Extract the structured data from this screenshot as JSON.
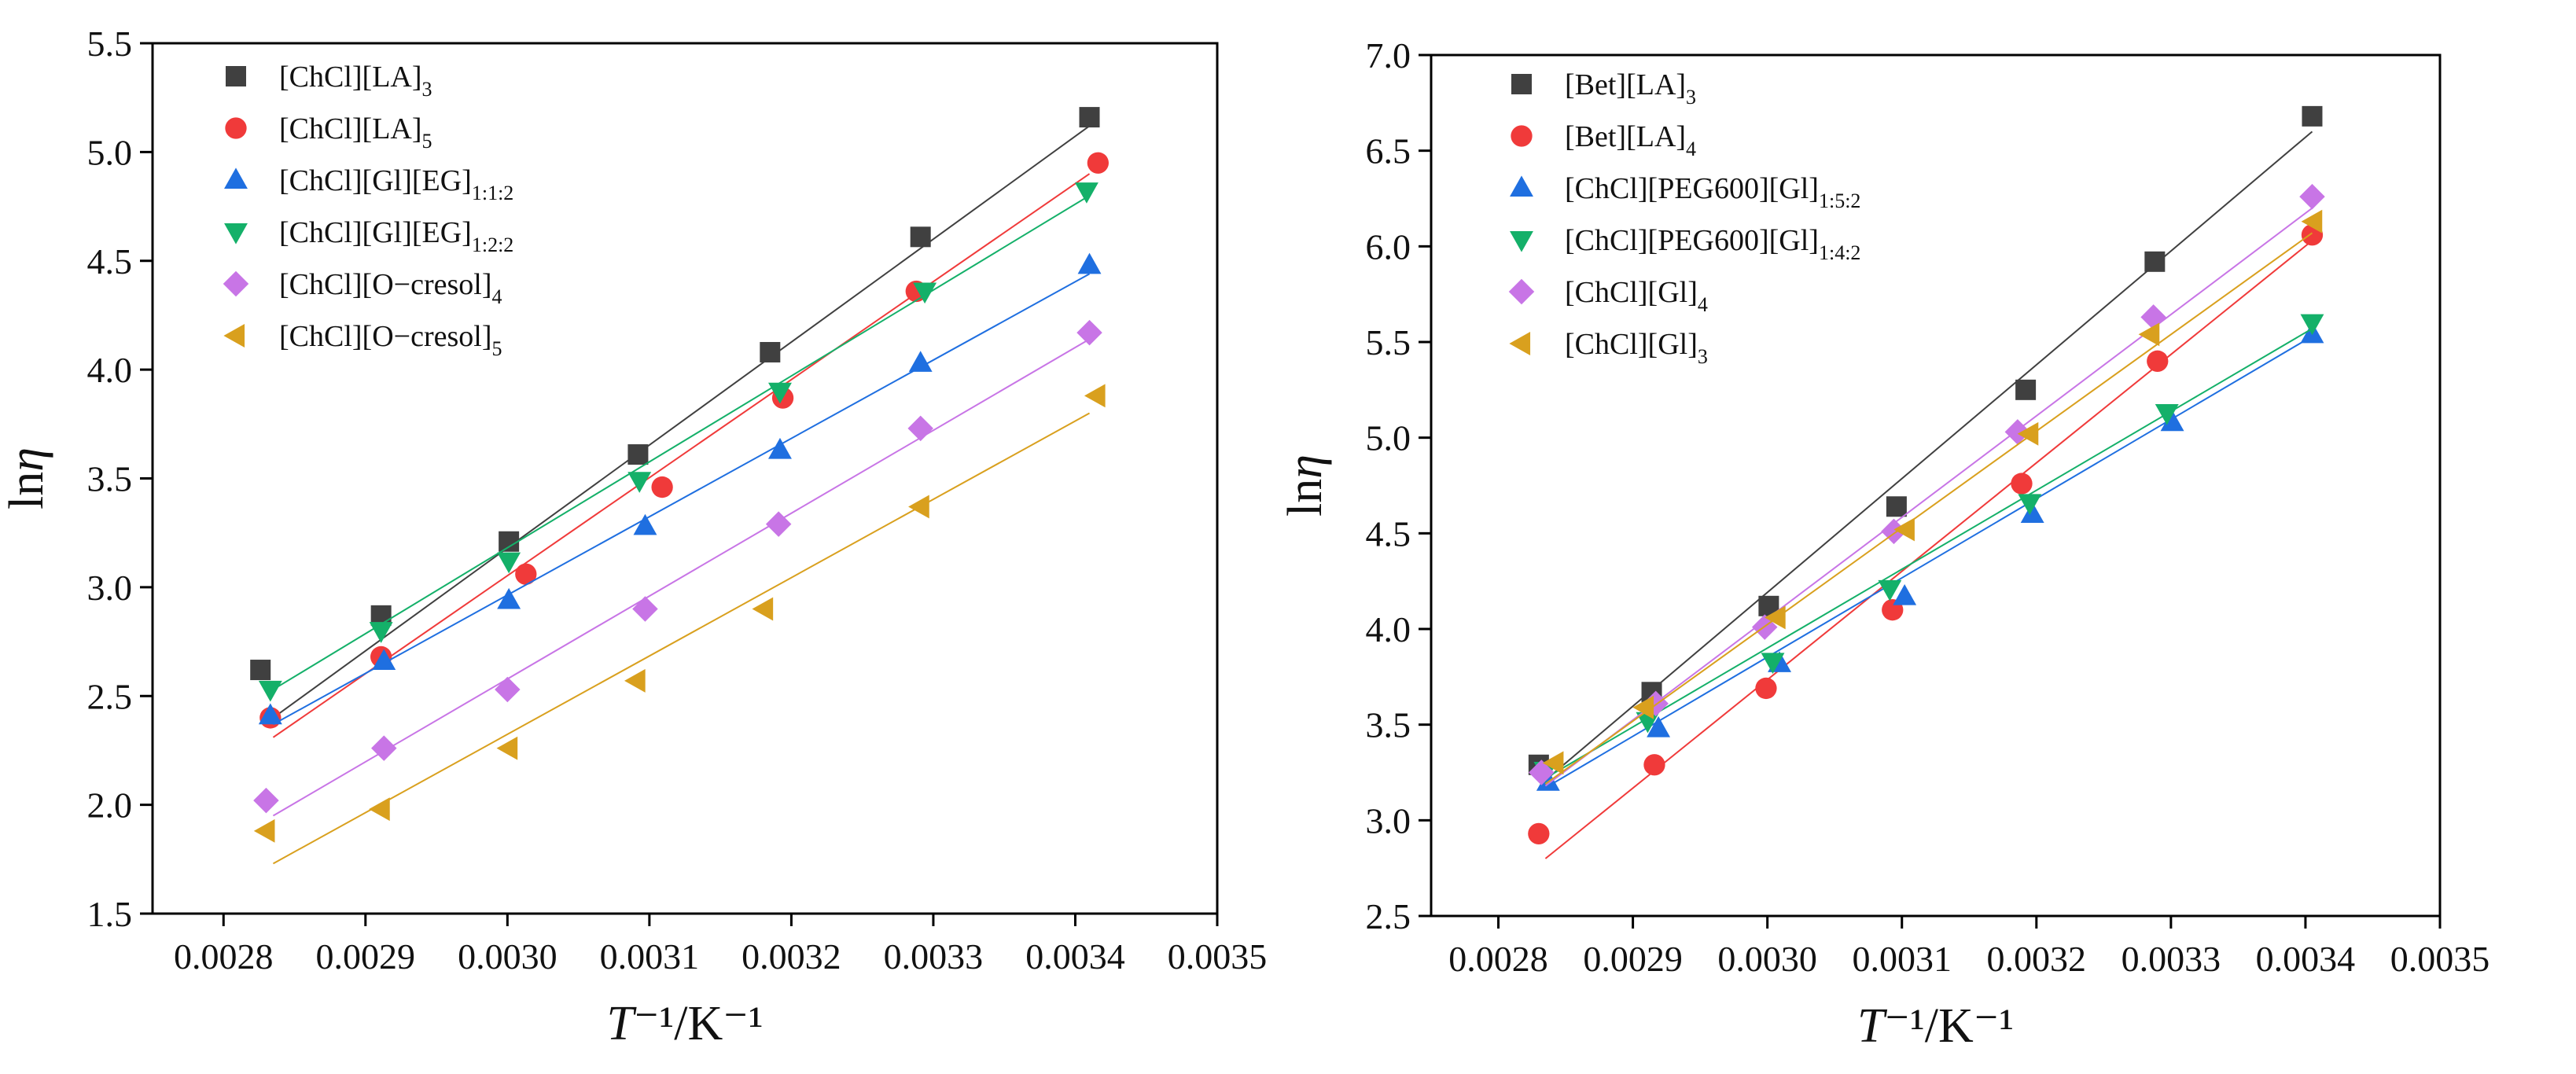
{
  "chart_data": [
    {
      "type": "scatter",
      "xlabel": "T⁻¹/K⁻¹",
      "ylabel": "lnη",
      "xlim": [
        0.00275,
        0.0035
      ],
      "ylim": [
        1.5,
        5.5
      ],
      "xticks": [
        "0.0028",
        "0.0029",
        "0.0030",
        "0.0031",
        "0.0032",
        "0.0033",
        "0.0034",
        "0.0035"
      ],
      "yticks": [
        "1.5",
        "2.0",
        "2.5",
        "3.0",
        "3.5",
        "4.0",
        "4.5",
        "5.0",
        "5.5"
      ],
      "legend_position": "top-left",
      "series": [
        {
          "name": "[ChCl][LA]",
          "sub": "3",
          "marker": "square",
          "color": "#404040",
          "x": [
            0.002826,
            0.002911,
            0.003001,
            0.003092,
            0.003185,
            0.003291,
            0.00341
          ],
          "y": [
            2.62,
            2.87,
            3.21,
            3.61,
            4.08,
            4.61,
            5.16
          ],
          "fit": [
            [
              0.002835,
              2.4
            ],
            [
              0.00341,
              5.12
            ]
          ]
        },
        {
          "name": "[ChCl][LA]",
          "sub": "5",
          "marker": "circle",
          "color": "#f03a3a",
          "x": [
            0.002833,
            0.002911,
            0.003013,
            0.003109,
            0.003194,
            0.003288,
            0.003416
          ],
          "y": [
            2.4,
            2.68,
            3.06,
            3.46,
            3.87,
            4.36,
            4.95
          ],
          "fit": [
            [
              0.002835,
              2.31
            ],
            [
              0.00341,
              4.9
            ]
          ]
        },
        {
          "name": "[ChCl][Gl][EG]",
          "sub": "1:1:2",
          "marker": "triangle-up",
          "color": "#1f6fe0",
          "x": [
            0.002833,
            0.002913,
            0.003001,
            0.003097,
            0.003192,
            0.003291,
            0.00341
          ],
          "y": [
            2.41,
            2.66,
            2.94,
            3.28,
            3.63,
            4.03,
            4.48
          ],
          "fit": [
            [
              0.002835,
              2.37
            ],
            [
              0.00341,
              4.44
            ]
          ]
        },
        {
          "name": "[ChCl][Gl][EG]",
          "sub": "1:2:2",
          "marker": "triangle-down",
          "color": "#14b069",
          "x": [
            0.002833,
            0.002911,
            0.003001,
            0.003093,
            0.003192,
            0.003294,
            0.003408
          ],
          "y": [
            2.53,
            2.8,
            3.12,
            3.49,
            3.9,
            4.36,
            4.82
          ],
          "fit": [
            [
              0.002835,
              2.53
            ],
            [
              0.00341,
              4.8
            ]
          ]
        },
        {
          "name": "[ChCl][O−cresol]",
          "sub": "4",
          "marker": "diamond",
          "color": "#c875e6",
          "x": [
            0.00283,
            0.002913,
            0.003,
            0.003097,
            0.003191,
            0.003291,
            0.00341
          ],
          "y": [
            2.02,
            2.26,
            2.53,
            2.9,
            3.29,
            3.73,
            4.17
          ],
          "fit": [
            [
              0.002835,
              1.95
            ],
            [
              0.00341,
              4.14
            ]
          ]
        },
        {
          "name": "[ChCl][O−cresol]",
          "sub": "5",
          "marker": "triangle-left",
          "color": "#d9a01e",
          "x": [
            0.00283,
            0.002911,
            0.003001,
            0.003091,
            0.003181,
            0.003291,
            0.003415
          ],
          "y": [
            1.88,
            1.98,
            2.26,
            2.57,
            2.9,
            3.37,
            3.88
          ],
          "fit": [
            [
              0.002835,
              1.73
            ],
            [
              0.00341,
              3.8
            ]
          ]
        }
      ]
    },
    {
      "type": "scatter",
      "xlabel": "T⁻¹/K⁻¹",
      "ylabel": "lnη",
      "xlim": [
        0.00275,
        0.0035
      ],
      "ylim": [
        2.5,
        7.0
      ],
      "xticks": [
        "0.0028",
        "0.0029",
        "0.0030",
        "0.0031",
        "0.0032",
        "0.0033",
        "0.0034",
        "0.0035"
      ],
      "yticks": [
        "2.5",
        "3.0",
        "3.5",
        "4.0",
        "4.5",
        "5.0",
        "5.5",
        "6.0",
        "6.5",
        "7.0"
      ],
      "legend_position": "top-left",
      "series": [
        {
          "name": "[Bet][LA]",
          "sub": "3",
          "marker": "square",
          "color": "#404040",
          "x": [
            0.00283,
            0.002914,
            0.003001,
            0.003096,
            0.003192,
            0.003288,
            0.003405
          ],
          "y": [
            3.29,
            3.67,
            4.12,
            4.64,
            5.25,
            5.92,
            6.68
          ],
          "fit": [
            [
              0.002835,
              3.21
            ],
            [
              0.003405,
              6.6
            ]
          ]
        },
        {
          "name": "[Bet][LA]",
          "sub": "4",
          "marker": "circle",
          "color": "#f03a3a",
          "x": [
            0.00283,
            0.002916,
            0.002999,
            0.003093,
            0.003189,
            0.00329,
            0.003405
          ],
          "y": [
            2.93,
            3.29,
            3.69,
            4.1,
            4.76,
            5.4,
            6.06
          ],
          "fit": [
            [
              0.002835,
              2.8
            ],
            [
              0.003405,
              6.03
            ]
          ]
        },
        {
          "name": "[ChCl][PEG600][Gl]",
          "sub": "1:5:2",
          "marker": "triangle-up",
          "color": "#1f6fe0",
          "x": [
            0.002837,
            0.002919,
            0.003009,
            0.003102,
            0.003197,
            0.003301,
            0.003405
          ],
          "y": [
            3.2,
            3.48,
            3.82,
            4.17,
            4.6,
            5.08,
            5.54
          ],
          "fit": [
            [
              0.002835,
              3.17
            ],
            [
              0.003405,
              5.53
            ]
          ]
        },
        {
          "name": "[ChCl][PEG600][Gl]",
          "sub": "1:4:2",
          "marker": "triangle-down",
          "color": "#14b069",
          "x": [
            0.002835,
            0.002911,
            0.003004,
            0.003091,
            0.003195,
            0.003297,
            0.003405
          ],
          "y": [
            3.26,
            3.52,
            3.83,
            4.21,
            4.66,
            5.13,
            5.6
          ],
          "fit": [
            [
              0.002835,
              3.22
            ],
            [
              0.003405,
              5.57
            ]
          ]
        },
        {
          "name": "[ChCl][Gl]",
          "sub": "4",
          "marker": "diamond",
          "color": "#c875e6",
          "x": [
            0.002832,
            0.002917,
            0.002998,
            0.003094,
            0.003186,
            0.003287,
            0.003405
          ],
          "y": [
            3.25,
            3.61,
            4.01,
            4.51,
            5.03,
            5.63,
            6.26
          ],
          "fit": [
            [
              0.002835,
              3.18
            ],
            [
              0.003405,
              6.2
            ]
          ]
        },
        {
          "name": "[ChCl][Gl]",
          "sub": "3",
          "marker": "triangle-left",
          "color": "#d9a01e",
          "x": [
            0.002842,
            0.002909,
            0.003007,
            0.003103,
            0.003195,
            0.003285,
            0.003406
          ],
          "y": [
            3.3,
            3.59,
            4.06,
            4.52,
            5.02,
            5.54,
            6.13
          ],
          "fit": [
            [
              0.002835,
              3.19
            ],
            [
              0.003405,
              6.07
            ]
          ]
        }
      ]
    }
  ]
}
